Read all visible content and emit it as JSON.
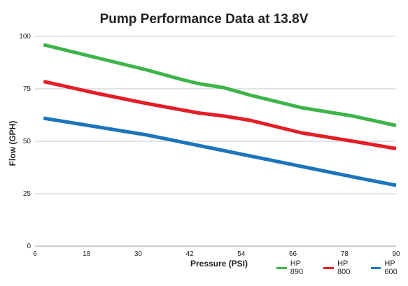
{
  "chart_data": {
    "type": "line",
    "title": "Pump Performance Data at 13.8V",
    "xlabel": "Pressure (PSI)",
    "ylabel": "Flow (GPH)",
    "xlim": [
      6,
      90
    ],
    "ylim": [
      0,
      100
    ],
    "x_ticks": [
      "6",
      "18",
      "30",
      "42",
      "54",
      "66",
      "78",
      "90"
    ],
    "y_ticks": [
      "0",
      "25",
      "50",
      "75",
      "100"
    ],
    "grid": "horizontal",
    "legend_position": "bottom-right",
    "series": [
      {
        "name": "HP 890",
        "color": "#3cb44a",
        "x": [
          8,
          20,
          32,
          40,
          44,
          50,
          56,
          68,
          80,
          90
        ],
        "y": [
          96,
          90,
          84,
          79.5,
          77.5,
          75.5,
          72,
          66,
          62,
          57.5
        ]
      },
      {
        "name": "HP 800",
        "color": "#e31e26",
        "x": [
          8,
          20,
          32,
          40,
          44,
          50,
          56,
          68,
          80,
          90
        ],
        "y": [
          78.5,
          73,
          68,
          65,
          63.5,
          62,
          60,
          54,
          50,
          46.5
        ]
      },
      {
        "name": "HP 600",
        "color": "#1c75bc",
        "x": [
          8,
          20,
          32,
          44,
          56,
          68,
          80,
          90
        ],
        "y": [
          61,
          57,
          53,
          48,
          43,
          38,
          33,
          29
        ]
      }
    ]
  }
}
